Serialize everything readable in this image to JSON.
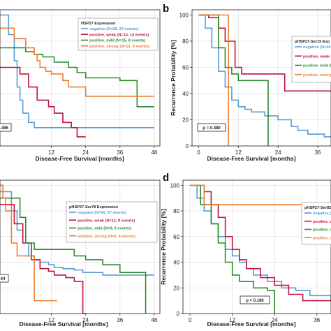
{
  "chart_data": [
    {
      "panel": "",
      "type": "line",
      "xlabel": "Disease-Free Survival [months]",
      "ylabel": "",
      "xlim": [
        -6,
        50
      ],
      "ylim": [
        0,
        104
      ],
      "xticks": [
        12,
        24,
        36,
        48
      ],
      "yticks": [],
      "legend_title": "HSP27 Expression",
      "legend_placement": "top-right",
      "pvalue": ".486",
      "series": [
        {
          "name": "negative (N=28, 23 events)",
          "color": "#5b9bd5",
          "x": [
            -6,
            -3,
            -1,
            0,
            1,
            2,
            4,
            6,
            48
          ],
          "y": [
            100,
            85,
            65,
            45,
            35,
            25,
            18,
            14,
            14
          ]
        },
        {
          "name": "positive, weak (N=14, 13 events)",
          "color": "#c0143c",
          "x": [
            -6,
            1,
            4,
            7,
            11,
            13,
            16,
            19,
            21,
            24
          ],
          "y": [
            60,
            55,
            45,
            35,
            30,
            25,
            18,
            14,
            7,
            7
          ]
        },
        {
          "name": "positive, mild (N=15, 8 events)",
          "color": "#2e8b2e",
          "x": [
            -6,
            3,
            6,
            9,
            13,
            18,
            21,
            24,
            36,
            42,
            48
          ],
          "y": [
            75,
            72,
            70,
            68,
            64,
            60,
            56,
            52,
            50,
            30,
            30
          ]
        },
        {
          "name": "positive, strong (N=16, 9 events)",
          "color": "#ee7d31",
          "x": [
            -6,
            -1,
            3,
            6,
            7,
            8,
            10,
            12,
            16,
            18,
            24,
            36,
            48
          ],
          "y": [
            90,
            82,
            75,
            70,
            65,
            60,
            57,
            55,
            50,
            45,
            38,
            38,
            38
          ]
        }
      ]
    },
    {
      "panel": "b",
      "type": "line",
      "xlabel": "Disease-Free Survival [months]",
      "ylabel": "Recurrence Probability [%]",
      "xlim": [
        -2,
        40
      ],
      "ylim": [
        0,
        104
      ],
      "xticks": [
        0,
        12,
        24,
        36
      ],
      "yticks": [
        0,
        20,
        40,
        60,
        80,
        100
      ],
      "legend_title": "pHSP27-Ser15 Exp",
      "legend_placement": "right",
      "pvalue": "p = 0.489",
      "series": [
        {
          "name": "negative (N=40, 4",
          "color": "#5b9bd5",
          "x": [
            0,
            2,
            4,
            6,
            8,
            10,
            12,
            14,
            16,
            20,
            24,
            28,
            30,
            33,
            38,
            40
          ],
          "y": [
            100,
            90,
            75,
            57,
            45,
            35,
            30,
            28,
            26,
            23,
            20,
            15,
            12,
            9,
            7,
            7
          ]
        },
        {
          "name": "positive, weak (N",
          "color": "#c0143c",
          "x": [
            0,
            3,
            6,
            8,
            11,
            13,
            24,
            26,
            40
          ],
          "y": [
            100,
            98,
            90,
            80,
            60,
            55,
            55,
            42,
            42
          ]
        },
        {
          "name": "positive, mild (N=",
          "color": "#2e8b2e",
          "x": [
            0,
            6,
            8,
            10,
            12,
            21,
            21
          ],
          "y": [
            100,
            75,
            60,
            55,
            50,
            50,
            0
          ]
        },
        {
          "name": "positive, strong (N",
          "color": "#ee7d31",
          "x": [
            0,
            9,
            9
          ],
          "y": [
            100,
            100,
            0
          ]
        }
      ]
    },
    {
      "panel": "",
      "type": "line",
      "xlabel": "Disease-Free Survival [months]",
      "ylabel": "",
      "xlim": [
        -6,
        50
      ],
      "ylim": [
        0,
        104
      ],
      "xticks": [
        12,
        24,
        36,
        48
      ],
      "yticks": [],
      "legend_title": "pHSP27-Ser78 Expression",
      "legend_placement": "right",
      "pvalue": "04",
      "series": [
        {
          "name": "negative (N=50, 27 events)",
          "color": "#5b9bd5",
          "x": [
            -6,
            -2,
            0,
            2,
            4,
            6,
            8,
            11,
            13,
            16,
            20,
            23,
            26,
            30,
            36,
            48
          ],
          "y": [
            95,
            80,
            65,
            55,
            45,
            42,
            40,
            38,
            36,
            35,
            34,
            32,
            32,
            30,
            30,
            30
          ]
        },
        {
          "name": "positive, weak (N=12, 9 events)",
          "color": "#c0143c",
          "x": [
            -6,
            -1,
            2,
            5,
            8,
            11,
            13,
            17,
            20,
            23,
            24
          ],
          "y": [
            85,
            70,
            55,
            42,
            35,
            33,
            30,
            28,
            25,
            0,
            0
          ]
        },
        {
          "name": "positive, mild (N=9, 6 events)",
          "color": "#2e8b2e",
          "x": [
            -6,
            1,
            3,
            6,
            16,
            20,
            24,
            30,
            36,
            45,
            45
          ],
          "y": [
            90,
            75,
            55,
            50,
            50,
            45,
            42,
            38,
            32,
            32,
            0
          ]
        },
        {
          "name": "positive, strong (N=6, 4 events)",
          "color": "#ee7d31",
          "x": [
            -6,
            -5,
            -4,
            -2,
            0,
            6,
            8,
            14
          ],
          "y": [
            100,
            90,
            80,
            55,
            45,
            10,
            10,
            10
          ]
        }
      ]
    },
    {
      "panel": "d",
      "type": "line",
      "xlabel": "Disease-Free Survival [months]",
      "ylabel": "Recurrence Probability [%]",
      "xlim": [
        -2,
        40
      ],
      "ylim": [
        0,
        104
      ],
      "xticks": [
        0,
        12,
        24,
        36
      ],
      "yticks": [
        0,
        20,
        40,
        60,
        80,
        100
      ],
      "legend_title": "pHSP27-Ser82",
      "legend_placement": "right",
      "pvalue": "p = 0.180",
      "series": [
        {
          "name": "negative (N=34,",
          "color": "#5b9bd5",
          "x": [
            0,
            2,
            4,
            6,
            8,
            10,
            12,
            14,
            16,
            18,
            22,
            26,
            30,
            34,
            40
          ],
          "y": [
            100,
            90,
            80,
            70,
            60,
            50,
            45,
            40,
            35,
            30,
            25,
            20,
            18,
            14,
            10
          ]
        },
        {
          "name": "positive, weak (",
          "color": "#c0143c",
          "x": [
            0,
            4,
            6,
            8,
            10,
            12,
            14,
            16,
            20,
            24,
            28,
            32,
            40
          ],
          "y": [
            100,
            95,
            85,
            75,
            60,
            50,
            42,
            35,
            28,
            22,
            15,
            10,
            10
          ]
        },
        {
          "name": "positive, mild (N",
          "color": "#2e8b2e",
          "x": [
            0,
            3,
            6,
            8,
            10,
            12,
            14,
            18,
            22,
            24,
            24
          ],
          "y": [
            100,
            85,
            70,
            55,
            40,
            30,
            25,
            20,
            18,
            15,
            0
          ]
        },
        {
          "name": "positive, strong",
          "color": "#ee7d31",
          "x": [
            0,
            4,
            40
          ],
          "y": [
            100,
            85,
            85
          ]
        }
      ]
    }
  ]
}
